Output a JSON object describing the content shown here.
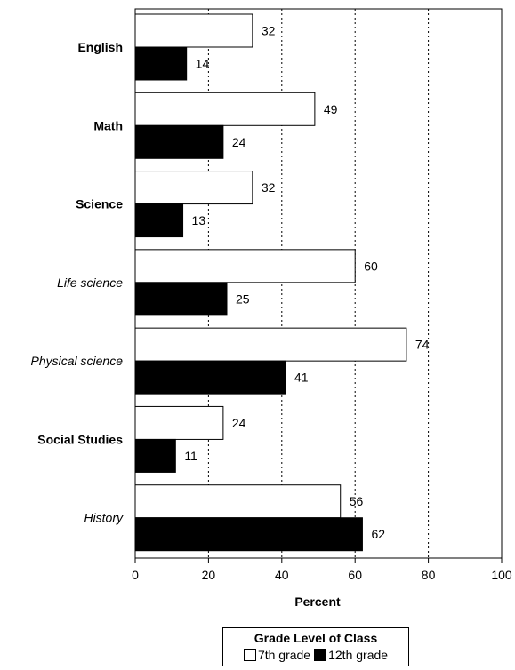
{
  "chart_data": {
    "type": "bar",
    "orientation": "horizontal",
    "categories": [
      {
        "label": "English",
        "style": "bold"
      },
      {
        "label": "Math",
        "style": "bold"
      },
      {
        "label": "Science",
        "style": "bold"
      },
      {
        "label": "Life science",
        "style": "italic"
      },
      {
        "label": "Physical science",
        "style": "italic"
      },
      {
        "label": "Social Studies",
        "style": "bold"
      },
      {
        "label": "History",
        "style": "italic"
      }
    ],
    "series": [
      {
        "name": "7th grade",
        "color": "#ffffff",
        "values": [
          32,
          49,
          32,
          60,
          74,
          24,
          56
        ]
      },
      {
        "name": "12th grade",
        "color": "#000000",
        "values": [
          14,
          24,
          13,
          25,
          41,
          11,
          62
        ]
      }
    ],
    "xlabel": "Percent",
    "xlim": [
      0,
      100
    ],
    "xticks": [
      "0",
      "20",
      "40",
      "60",
      "80",
      "100"
    ],
    "gridlines": "dotted vertical at 20, 40, 60, 80",
    "legend": {
      "title": "Grade Level of Class",
      "placement": "bottom"
    }
  }
}
